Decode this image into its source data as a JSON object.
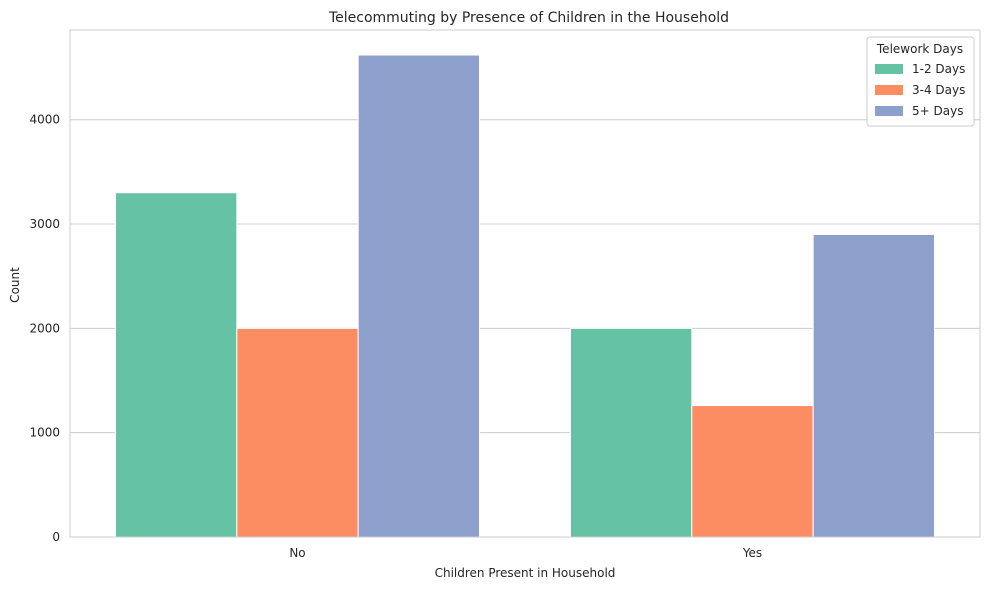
{
  "chart_data": {
    "type": "bar",
    "title": "Telecommuting by Presence of Children in the Household",
    "xlabel": "Children Present in Household",
    "ylabel": "Count",
    "categories": [
      "No",
      "Yes"
    ],
    "series": [
      {
        "name": "1-2 Days",
        "color": "#66c2a5",
        "values": [
          3300,
          2000
        ]
      },
      {
        "name": "3-4 Days",
        "color": "#fc8d62",
        "values": [
          2000,
          1260
        ]
      },
      {
        "name": "5+ Days",
        "color": "#8da0cb",
        "values": [
          4620,
          2900
        ]
      }
    ],
    "ylim": [
      0,
      4860
    ],
    "yticks": [
      0,
      1000,
      2000,
      3000,
      4000
    ],
    "ytick_labels": [
      "0",
      "1000",
      "2000",
      "3000",
      "4000"
    ],
    "grid": "horizontal",
    "legend": {
      "title": "Telework Days",
      "placement": "top-right"
    }
  }
}
